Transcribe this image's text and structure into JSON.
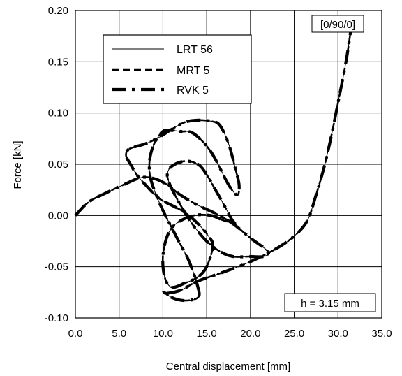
{
  "chart_data": {
    "type": "line",
    "title": "",
    "xlabel": "Central displacement [mm]",
    "ylabel": "Force [kN]",
    "xlim": [
      0,
      35
    ],
    "ylim": [
      -0.1,
      0.2
    ],
    "xticks": [
      0,
      5,
      10,
      15,
      20,
      25,
      30,
      35
    ],
    "yticks": [
      -0.1,
      -0.05,
      0,
      0.05,
      0.1,
      0.15,
      0.2
    ],
    "xtick_labels": [
      "0.0",
      "5.0",
      "10.0",
      "15.0",
      "20.0",
      "25.0",
      "30.0",
      "35.0"
    ],
    "ytick_labels": [
      "-0.10",
      "-0.05",
      "0.00",
      "0.05",
      "0.10",
      "0.15",
      "0.20"
    ],
    "grid": true,
    "legend_position": "top-left",
    "annotations": [
      "[0/90/0]",
      "h = 3.15 mm"
    ],
    "series": [
      {
        "name": "LRT 56",
        "style": "solid-thin",
        "x": [
          0.0,
          1.5,
          3.5,
          5.5,
          7.5,
          9.0,
          10.5,
          12.0,
          14.0,
          16.0,
          18.0,
          20.0,
          22.0,
          21.5,
          20.0,
          18.0,
          16.5,
          15.0,
          13.5,
          12.5,
          11.5,
          10.8,
          10.5,
          11.0,
          12.5,
          14.0,
          15.0,
          16.0,
          17.0,
          17.8,
          18.2,
          18.0,
          17.0,
          15.5,
          13.5,
          11.5,
          10.5,
          10.0,
          10.2,
          11.0,
          12.5,
          14.0,
          15.0,
          15.7,
          15.2,
          14.0,
          12.5,
          11.0,
          9.5,
          8.0,
          7.0,
          6.3,
          5.8,
          6.0,
          6.8,
          8.0,
          9.5,
          11.0,
          12.5,
          14.0,
          15.5,
          16.5,
          17.5,
          18.3,
          18.7,
          18.5,
          17.5,
          15.5,
          13.5,
          12.0,
          11.0,
          10.0,
          9.0,
          8.5,
          8.5,
          9.0,
          10.0,
          11.5,
          13.0,
          14.0,
          14.0,
          12.5,
          11.0,
          10.0,
          10.3,
          12.0,
          14.0,
          17.0,
          20.0,
          23.0,
          25.0,
          26.5,
          27.5,
          28.5,
          29.3,
          30.0,
          30.7,
          31.2,
          31.6
        ],
        "y": [
          0.0,
          0.013,
          0.022,
          0.03,
          0.037,
          0.036,
          0.03,
          0.02,
          0.01,
          0.002,
          -0.008,
          -0.022,
          -0.035,
          -0.04,
          -0.04,
          -0.04,
          -0.035,
          -0.025,
          -0.01,
          0.003,
          0.018,
          0.03,
          0.04,
          0.048,
          0.053,
          0.05,
          0.04,
          0.025,
          0.01,
          -0.003,
          -0.008,
          -0.005,
          -0.005,
          0.0,
          0.0,
          -0.008,
          -0.02,
          -0.04,
          -0.06,
          -0.07,
          -0.066,
          -0.06,
          -0.05,
          -0.03,
          -0.02,
          -0.008,
          0.003,
          0.01,
          0.017,
          0.03,
          0.04,
          0.05,
          0.058,
          0.064,
          0.067,
          0.07,
          0.076,
          0.084,
          0.091,
          0.093,
          0.092,
          0.088,
          0.07,
          0.045,
          0.03,
          0.02,
          0.03,
          0.062,
          0.08,
          0.082,
          0.083,
          0.082,
          0.07,
          0.055,
          0.04,
          0.025,
          0.005,
          -0.02,
          -0.045,
          -0.07,
          -0.08,
          -0.083,
          -0.08,
          -0.074,
          -0.076,
          -0.073,
          -0.064,
          -0.055,
          -0.045,
          -0.032,
          -0.02,
          -0.005,
          0.02,
          0.05,
          0.08,
          0.11,
          0.14,
          0.165,
          0.19
        ]
      },
      {
        "name": "MRT 5",
        "style": "dashed",
        "x": [
          0.0,
          1.5,
          3.5,
          5.5,
          7.5,
          9.0,
          10.5,
          12.0,
          14.0,
          16.0,
          18.0,
          20.0,
          22.0,
          21.5,
          20.0,
          18.0,
          16.5,
          15.0,
          13.5,
          12.5,
          11.5,
          10.8,
          10.5,
          11.0,
          12.5,
          14.0,
          15.0,
          16.0,
          17.0,
          17.8,
          18.2,
          18.0,
          17.0,
          15.5,
          13.5,
          11.5,
          10.5,
          10.0,
          10.2,
          11.0,
          12.5,
          14.0,
          15.0,
          15.7,
          15.2,
          14.0,
          12.5,
          11.0,
          9.5,
          8.0,
          7.0,
          6.3,
          5.8,
          6.0,
          6.8,
          8.0,
          9.5,
          11.0,
          12.5,
          14.0,
          15.5,
          16.5,
          17.5,
          18.3,
          18.7,
          18.5,
          17.5,
          15.5,
          13.5,
          12.0,
          11.0,
          10.0,
          9.0,
          8.5,
          8.5,
          9.0,
          10.0,
          11.5,
          13.0,
          14.0,
          14.0,
          12.5,
          11.0,
          10.0,
          10.3,
          12.0,
          14.0,
          17.0,
          20.0,
          23.0,
          25.0,
          26.5,
          27.5,
          28.5,
          29.3,
          30.0,
          30.7,
          31.2,
          31.6
        ],
        "y": [
          0.0,
          0.013,
          0.022,
          0.03,
          0.037,
          0.036,
          0.03,
          0.02,
          0.01,
          0.002,
          -0.008,
          -0.022,
          -0.035,
          -0.04,
          -0.04,
          -0.04,
          -0.035,
          -0.025,
          -0.01,
          0.003,
          0.018,
          0.03,
          0.04,
          0.048,
          0.053,
          0.05,
          0.04,
          0.025,
          0.01,
          -0.003,
          -0.008,
          -0.005,
          -0.005,
          0.0,
          0.0,
          -0.008,
          -0.02,
          -0.04,
          -0.06,
          -0.07,
          -0.066,
          -0.06,
          -0.05,
          -0.03,
          -0.02,
          -0.008,
          0.003,
          0.01,
          0.017,
          0.03,
          0.04,
          0.05,
          0.058,
          0.064,
          0.067,
          0.07,
          0.076,
          0.084,
          0.091,
          0.093,
          0.092,
          0.088,
          0.07,
          0.045,
          0.03,
          0.02,
          0.03,
          0.062,
          0.08,
          0.082,
          0.083,
          0.082,
          0.07,
          0.055,
          0.04,
          0.025,
          0.005,
          -0.02,
          -0.045,
          -0.07,
          -0.08,
          -0.083,
          -0.08,
          -0.074,
          -0.076,
          -0.073,
          -0.064,
          -0.055,
          -0.045,
          -0.032,
          -0.02,
          -0.005,
          0.02,
          0.05,
          0.08,
          0.11,
          0.14,
          0.165,
          0.19
        ]
      },
      {
        "name": "RVK 5",
        "style": "dash-dot-thick",
        "x": [
          0.0,
          1.5,
          3.5,
          5.5,
          7.5,
          9.0,
          10.5,
          12.0,
          14.0,
          16.0,
          18.0,
          20.0,
          22.0,
          21.5,
          20.0,
          18.0,
          16.5,
          15.0,
          13.5,
          12.5,
          11.5,
          10.8,
          10.5,
          11.0,
          12.5,
          14.0,
          15.0,
          16.0,
          17.0,
          17.8,
          18.2,
          18.0,
          17.0,
          15.5,
          13.5,
          11.5,
          10.5,
          10.0,
          10.2,
          11.0,
          12.5,
          14.0,
          15.0,
          15.7,
          15.2,
          14.0,
          12.5,
          11.0,
          9.5,
          8.0,
          7.0,
          6.3,
          5.8,
          6.0,
          6.8,
          8.0,
          9.5,
          11.0,
          12.5,
          14.0,
          15.5,
          16.5,
          17.5,
          18.3,
          18.7,
          18.5,
          17.5,
          15.5,
          13.5,
          12.0,
          11.0,
          10.0,
          9.0,
          8.5,
          8.5,
          9.0,
          10.0,
          11.5,
          13.0,
          14.0,
          14.0,
          12.5,
          11.0,
          10.0,
          10.3,
          12.0,
          14.0,
          17.0,
          20.0,
          23.0,
          25.0,
          26.5,
          27.5,
          28.5,
          29.3,
          30.0,
          30.7,
          31.2,
          31.6
        ],
        "y": [
          0.0,
          0.013,
          0.022,
          0.03,
          0.037,
          0.036,
          0.03,
          0.02,
          0.01,
          0.002,
          -0.008,
          -0.022,
          -0.035,
          -0.04,
          -0.04,
          -0.04,
          -0.035,
          -0.025,
          -0.01,
          0.003,
          0.018,
          0.03,
          0.04,
          0.048,
          0.053,
          0.05,
          0.04,
          0.025,
          0.01,
          -0.003,
          -0.008,
          -0.005,
          -0.005,
          0.0,
          0.0,
          -0.008,
          -0.02,
          -0.04,
          -0.06,
          -0.07,
          -0.066,
          -0.06,
          -0.05,
          -0.03,
          -0.02,
          -0.008,
          0.003,
          0.01,
          0.017,
          0.03,
          0.04,
          0.05,
          0.058,
          0.064,
          0.067,
          0.07,
          0.076,
          0.084,
          0.091,
          0.093,
          0.092,
          0.088,
          0.07,
          0.045,
          0.03,
          0.02,
          0.03,
          0.062,
          0.08,
          0.082,
          0.083,
          0.082,
          0.07,
          0.055,
          0.04,
          0.025,
          0.005,
          -0.02,
          -0.045,
          -0.07,
          -0.08,
          -0.083,
          -0.08,
          -0.074,
          -0.076,
          -0.073,
          -0.064,
          -0.055,
          -0.045,
          -0.032,
          -0.02,
          -0.005,
          0.02,
          0.05,
          0.08,
          0.11,
          0.14,
          0.165,
          0.19
        ]
      }
    ]
  },
  "colors": {
    "line": "#000000",
    "grid": "#000000",
    "background": "#ffffff"
  }
}
